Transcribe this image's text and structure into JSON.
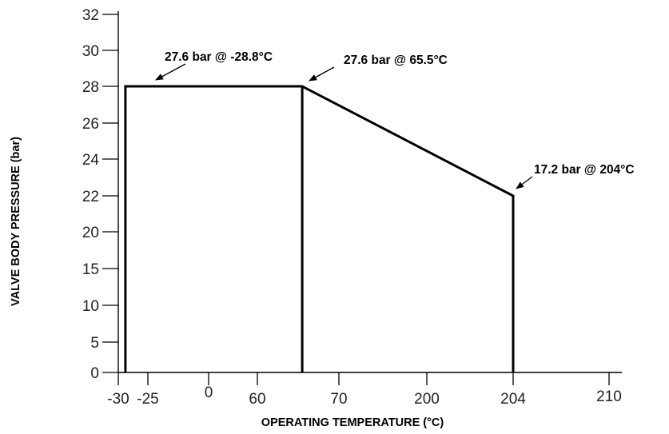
{
  "chart_data": {
    "type": "line",
    "xlabel": "OPERATING TEMPERATURE (°C)",
    "ylabel": "VALVE  BODY  PRESSURE  (bar)",
    "x_tick_labels": [
      "-30",
      "-25",
      "0",
      "60",
      "70",
      "200",
      "204",
      "210"
    ],
    "y_tick_labels": [
      "0",
      "5",
      "10",
      "15",
      "20",
      "22",
      "24",
      "26",
      "28",
      "30",
      "32"
    ],
    "series": [
      {
        "points": [
          {
            "x": -28.8,
            "y": 0
          },
          {
            "x": -28.8,
            "y": 27.6
          },
          {
            "x": 65.5,
            "y": 27.6
          },
          {
            "x": 204,
            "y": 17.2
          },
          {
            "x": 204,
            "y": 0
          }
        ]
      }
    ],
    "reference_lines": [
      {
        "x": 65.5,
        "from_y": 0,
        "to_y": 27.6
      }
    ],
    "annotations": [
      {
        "text": "27.6 bar @ -28.8°C",
        "x": -28.8,
        "y": 27.6
      },
      {
        "text": "27.6 bar @ 65.5°C",
        "x": 65.5,
        "y": 27.6
      },
      {
        "text": "17.2 bar @ 204°C",
        "x": 204,
        "y": 17.2
      }
    ],
    "grid": false,
    "legend": "none"
  }
}
